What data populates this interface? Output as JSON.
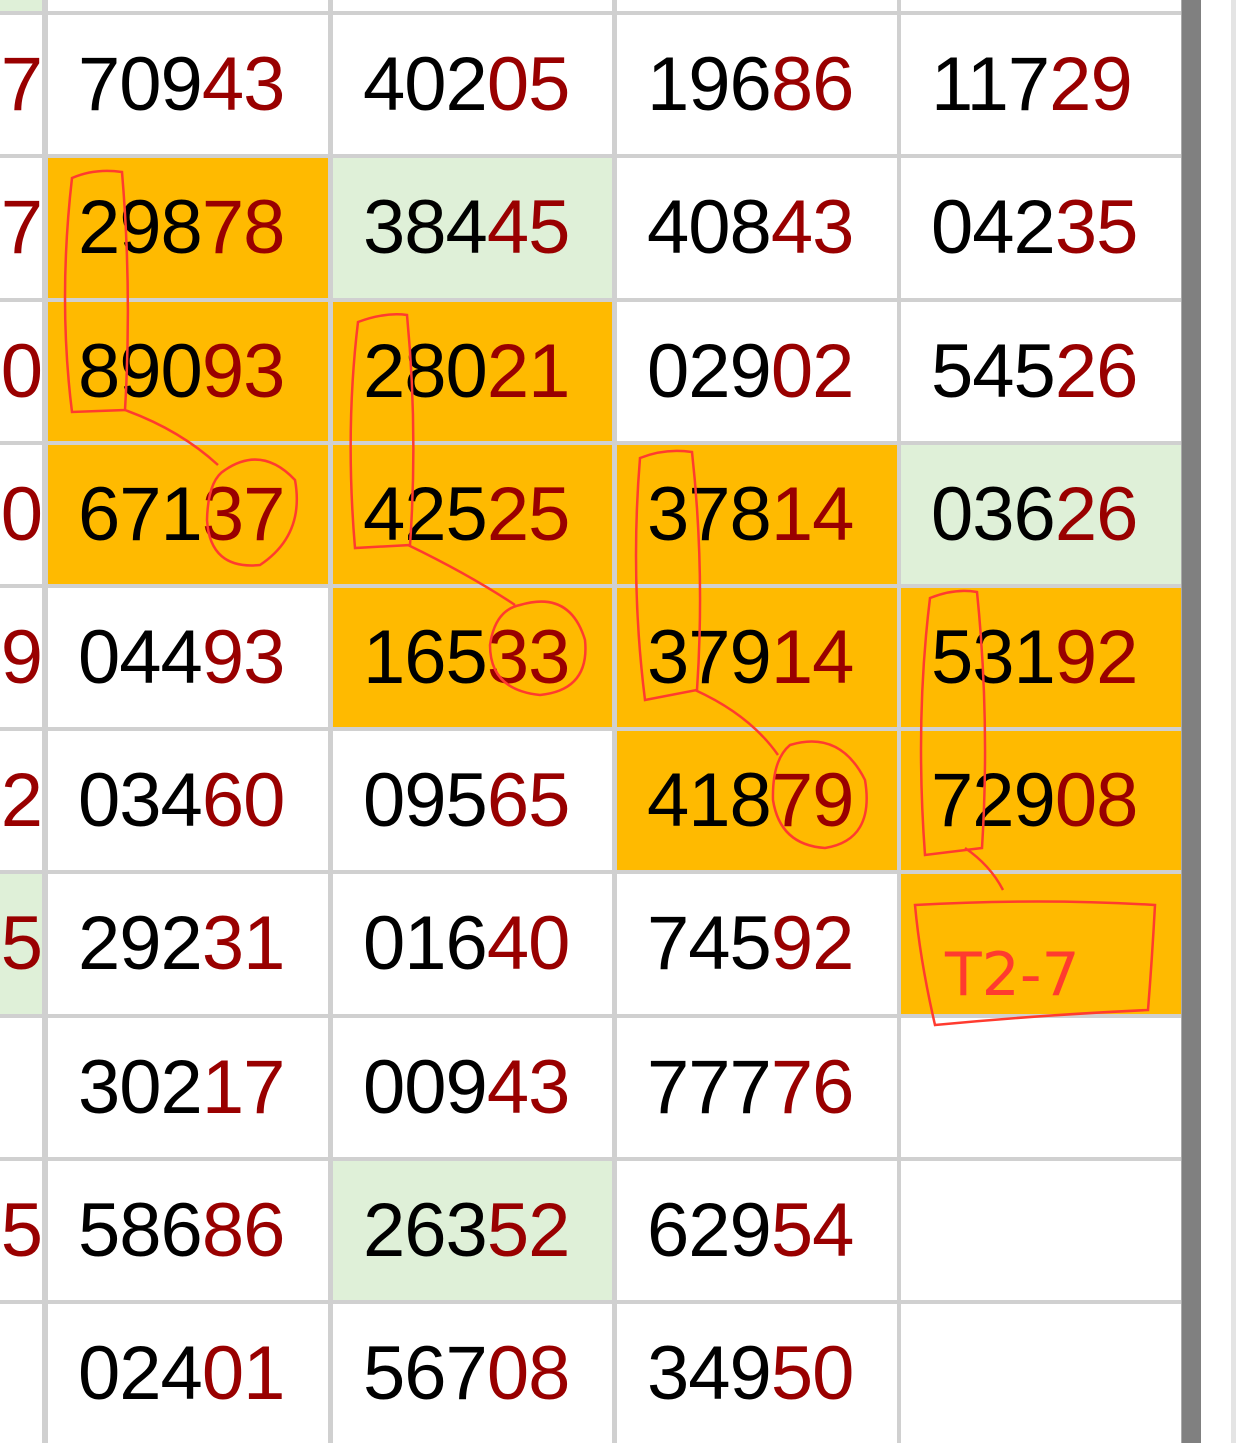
{
  "colors": {
    "highlight_orange": "#ffba00",
    "highlight_green": "#dff0d8",
    "suffix_red": "#990000",
    "annotation": "#ff3b2f"
  },
  "rows": [
    {
      "cells": [
        {
          "v": "",
          "s": "green"
        },
        {
          "v": "",
          "s": ""
        },
        {
          "v": "",
          "s": ""
        },
        {
          "v": "",
          "s": ""
        },
        {
          "v": "",
          "s": ""
        }
      ]
    },
    {
      "cells": [
        {
          "v": "7",
          "s": ""
        },
        {
          "v": "70943",
          "s": ""
        },
        {
          "v": "40205",
          "s": ""
        },
        {
          "v": "19686",
          "s": ""
        },
        {
          "v": "11729",
          "s": ""
        }
      ]
    },
    {
      "cells": [
        {
          "v": "7",
          "s": ""
        },
        {
          "v": "29878",
          "s": "orange"
        },
        {
          "v": "38445",
          "s": "green"
        },
        {
          "v": "40843",
          "s": ""
        },
        {
          "v": "04235",
          "s": ""
        }
      ]
    },
    {
      "cells": [
        {
          "v": "0",
          "s": ""
        },
        {
          "v": "89093",
          "s": "orange"
        },
        {
          "v": "28021",
          "s": "orange"
        },
        {
          "v": "02902",
          "s": ""
        },
        {
          "v": "54526",
          "s": ""
        }
      ]
    },
    {
      "cells": [
        {
          "v": "0",
          "s": ""
        },
        {
          "v": "67137",
          "s": "orange"
        },
        {
          "v": "42525",
          "s": "orange"
        },
        {
          "v": "37814",
          "s": "orange"
        },
        {
          "v": "03626",
          "s": "green"
        }
      ]
    },
    {
      "cells": [
        {
          "v": "9",
          "s": ""
        },
        {
          "v": "04493",
          "s": ""
        },
        {
          "v": "16533",
          "s": "orange"
        },
        {
          "v": "37914",
          "s": "orange"
        },
        {
          "v": "53192",
          "s": "orange"
        }
      ]
    },
    {
      "cells": [
        {
          "v": "2",
          "s": ""
        },
        {
          "v": "03460",
          "s": ""
        },
        {
          "v": "09565",
          "s": ""
        },
        {
          "v": "41879",
          "s": "orange"
        },
        {
          "v": "72908",
          "s": "orange"
        }
      ]
    },
    {
      "cells": [
        {
          "v": "5",
          "s": "green"
        },
        {
          "v": "29231",
          "s": ""
        },
        {
          "v": "01640",
          "s": ""
        },
        {
          "v": "74592",
          "s": ""
        },
        {
          "v": "",
          "s": "orange"
        }
      ]
    },
    {
      "cells": [
        {
          "v": "",
          "s": ""
        },
        {
          "v": "30217",
          "s": ""
        },
        {
          "v": "00943",
          "s": ""
        },
        {
          "v": "77776",
          "s": ""
        },
        {
          "v": "",
          "s": ""
        }
      ]
    },
    {
      "cells": [
        {
          "v": "5",
          "s": ""
        },
        {
          "v": "58686",
          "s": ""
        },
        {
          "v": "26352",
          "s": "green"
        },
        {
          "v": "62954",
          "s": ""
        },
        {
          "v": "",
          "s": ""
        }
      ]
    },
    {
      "cells": [
        {
          "v": "",
          "s": ""
        },
        {
          "v": "02401",
          "s": ""
        },
        {
          "v": "56708",
          "s": ""
        },
        {
          "v": "34950",
          "s": ""
        },
        {
          "v": "",
          "s": ""
        }
      ]
    }
  ],
  "annotation": {
    "note": "T2-7"
  }
}
